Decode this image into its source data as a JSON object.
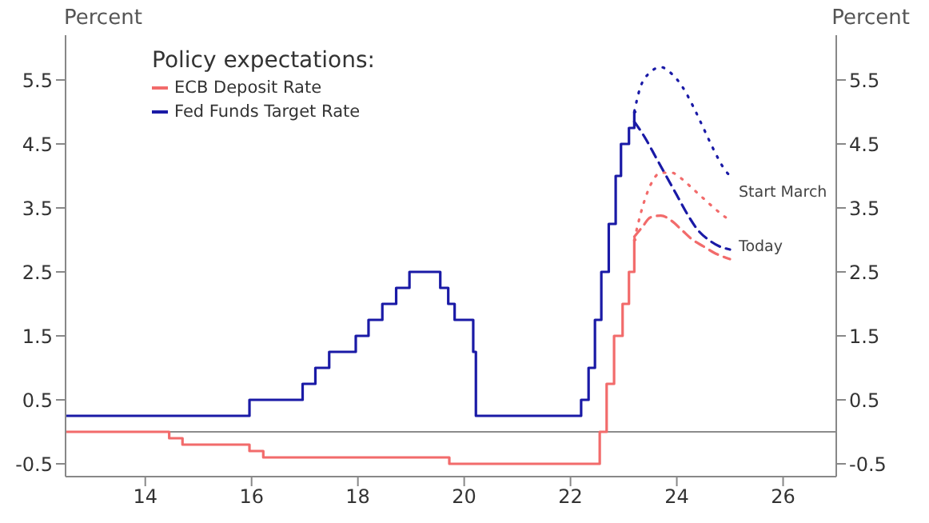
{
  "chart_data": {
    "type": "line",
    "legend_title": "Policy expectations:",
    "ylabel": "Percent",
    "y2label": "Percent",
    "xlim": [
      12.5,
      27
    ],
    "xticks": [
      14,
      16,
      18,
      20,
      22,
      24,
      26
    ],
    "ylim": [
      -0.7,
      6.2
    ],
    "yticks": [
      -0.5,
      0.5,
      1.5,
      2.5,
      3.5,
      4.5,
      5.5
    ],
    "y2lim": [
      -0.7,
      6.2
    ],
    "y2ticks": [
      -0.5,
      0.5,
      1.5,
      2.5,
      3.5,
      4.5,
      5.5
    ],
    "grid": false,
    "legend": "top left",
    "marker": "none",
    "series": [
      {
        "name": "ECB Deposit Rate",
        "type": "step",
        "color": "#f26b6b",
        "line_style": "solid",
        "x": [
          12.5,
          14.45,
          14.7,
          15.96,
          16.22,
          19.72,
          22.55,
          22.68,
          22.82,
          22.98,
          23.1,
          23.2,
          23.22
        ],
        "values": [
          0,
          -0.1,
          -0.2,
          -0.3,
          -0.4,
          -0.5,
          0,
          0.75,
          1.5,
          2,
          2.5,
          3,
          3
        ]
      },
      {
        "name": "Fed Funds Target Rate",
        "type": "step",
        "color": "#1a1aa6",
        "line_style": "solid",
        "x": [
          12.5,
          15.96,
          16.96,
          17.2,
          17.46,
          17.96,
          18.2,
          18.46,
          18.72,
          18.97,
          19.55,
          19.7,
          19.82,
          20.17,
          20.22,
          22.2,
          22.34,
          22.46,
          22.58,
          22.72,
          22.85,
          22.95,
          23.1,
          23.2,
          23.22
        ],
        "values": [
          0.25,
          0.5,
          0.75,
          1,
          1.25,
          1.5,
          1.75,
          2,
          2.25,
          2.5,
          2.25,
          2,
          1.75,
          1.25,
          0.25,
          0.5,
          1,
          1.75,
          2.5,
          3.25,
          4,
          4.5,
          4.75,
          5,
          5
        ]
      },
      {
        "type": "line",
        "color": "#1a1aa6",
        "line_style": "dotted",
        "x": [
          23.2,
          23.3,
          23.5,
          23.7,
          23.9,
          24.1,
          24.3,
          24.5,
          24.7,
          24.9,
          25
        ],
        "values": [
          5,
          5.35,
          5.62,
          5.7,
          5.6,
          5.4,
          5.1,
          4.75,
          4.4,
          4.1,
          4
        ]
      },
      {
        "type": "line",
        "color": "#1a1aa6",
        "line_style": "dashed",
        "x": [
          23.2,
          23.4,
          23.6,
          23.8,
          24,
          24.2,
          24.4,
          24.6,
          24.8,
          25
        ],
        "values": [
          4.85,
          4.6,
          4.3,
          4,
          3.7,
          3.4,
          3.15,
          3,
          2.9,
          2.85
        ]
      },
      {
        "type": "line",
        "color": "#f26b6b",
        "line_style": "dotted",
        "x": [
          23.2,
          23.35,
          23.5,
          23.7,
          23.9,
          24.1,
          24.3,
          24.5,
          24.7,
          25
        ],
        "values": [
          3,
          3.5,
          3.85,
          4.05,
          4.05,
          3.95,
          3.8,
          3.65,
          3.5,
          3.3
        ]
      },
      {
        "type": "line",
        "color": "#f26b6b",
        "line_style": "dashed",
        "x": [
          23.2,
          23.35,
          23.5,
          23.7,
          23.9,
          24.1,
          24.3,
          24.5,
          24.7,
          25
        ],
        "values": [
          3.05,
          3.2,
          3.35,
          3.38,
          3.3,
          3.15,
          3,
          2.9,
          2.8,
          2.7
        ]
      }
    ],
    "ref_lines": [
      {
        "axis": "y",
        "value": 0,
        "color": "#8c8c8c",
        "line_style": "solid"
      }
    ],
    "annotations": [
      "Start March",
      "Today"
    ]
  }
}
